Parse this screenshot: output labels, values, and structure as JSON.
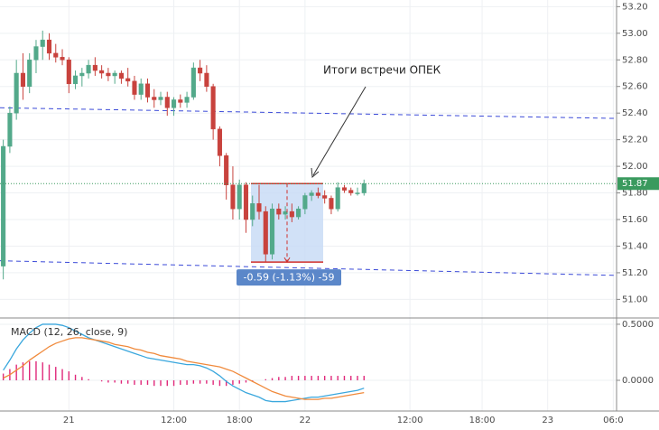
{
  "chart_data": {
    "type": "candlestick",
    "categories": [
      null,
      null,
      null,
      null,
      null,
      null,
      null,
      null,
      null,
      null,
      "21",
      null,
      null,
      null,
      null,
      null,
      null,
      null,
      null,
      null,
      null,
      null,
      null,
      null,
      null,
      null,
      "12:00",
      null,
      null,
      null,
      null,
      null,
      null,
      null,
      null,
      null,
      "18:00",
      null,
      null,
      null,
      null,
      null,
      null,
      null,
      null,
      null,
      "22",
      null,
      null,
      null,
      null,
      null,
      null,
      null,
      null,
      null,
      null,
      null,
      null,
      null,
      null,
      null,
      "12:00",
      null,
      null,
      null,
      null,
      null,
      null,
      null,
      null,
      null,
      null,
      "18:00",
      null,
      null,
      null,
      null,
      null,
      null,
      null,
      null,
      null,
      "23",
      null,
      null,
      null,
      null,
      null,
      null,
      null,
      null,
      null,
      "06:0"
    ],
    "open": [
      51.25,
      52.15,
      52.4,
      52.7,
      52.6,
      52.8,
      52.9,
      52.95,
      52.85,
      52.82,
      52.8,
      52.62,
      52.68,
      52.7,
      52.76,
      52.72,
      52.7,
      52.68,
      52.7,
      52.66,
      52.64,
      52.54,
      52.62,
      52.52,
      52.5,
      52.52,
      52.44,
      52.5,
      52.48,
      52.52,
      52.74,
      52.7,
      52.6,
      52.28,
      52.08,
      51.86,
      51.68,
      51.86,
      51.6,
      51.72,
      51.66,
      51.34,
      51.68,
      51.64,
      51.66,
      51.62,
      51.68,
      51.78,
      51.8,
      51.78,
      51.76,
      51.68,
      51.84,
      51.82,
      51.8,
      51.8,
      null,
      null,
      null,
      null,
      null,
      null,
      null,
      null,
      null,
      null,
      null,
      null,
      null,
      null,
      null,
      null,
      null,
      null,
      null,
      null,
      null,
      null,
      null,
      null,
      null,
      null,
      null,
      null,
      null,
      null,
      null,
      null,
      null,
      null,
      null,
      null,
      null,
      null
    ],
    "high": [
      52.2,
      52.45,
      52.8,
      52.85,
      52.85,
      52.95,
      53.02,
      53.0,
      52.92,
      52.88,
      52.82,
      52.72,
      52.74,
      52.8,
      52.82,
      52.76,
      52.74,
      52.72,
      52.72,
      52.74,
      52.68,
      52.66,
      52.66,
      52.58,
      52.56,
      52.56,
      52.52,
      52.54,
      52.56,
      52.78,
      52.8,
      52.76,
      52.62,
      52.3,
      52.1,
      52.0,
      51.9,
      51.88,
      51.78,
      51.86,
      51.7,
      51.72,
      51.72,
      51.7,
      51.72,
      51.7,
      51.8,
      51.82,
      51.84,
      51.82,
      51.78,
      51.88,
      51.86,
      51.84,
      51.84,
      51.9,
      null,
      null,
      null,
      null,
      null,
      null,
      null,
      null,
      null,
      null,
      null,
      null,
      null,
      null,
      null,
      null,
      null,
      null,
      null,
      null,
      null,
      null,
      null,
      null,
      null,
      null,
      null,
      null,
      null,
      null,
      null,
      null,
      null,
      null,
      null,
      null,
      null,
      null
    ],
    "low": [
      51.15,
      52.1,
      52.35,
      52.5,
      52.55,
      52.7,
      52.8,
      52.8,
      52.78,
      52.76,
      52.55,
      52.58,
      52.6,
      52.66,
      52.68,
      52.66,
      52.64,
      52.62,
      52.62,
      52.6,
      52.5,
      52.5,
      52.48,
      52.44,
      52.46,
      52.38,
      52.38,
      52.44,
      52.44,
      52.5,
      52.64,
      52.56,
      52.2,
      52.0,
      51.75,
      51.6,
      51.6,
      51.5,
      51.55,
      51.6,
      51.28,
      51.3,
      51.6,
      51.6,
      51.58,
      51.6,
      51.64,
      51.74,
      51.76,
      51.72,
      51.64,
      51.66,
      51.8,
      51.78,
      51.78,
      51.78,
      null,
      null,
      null,
      null,
      null,
      null,
      null,
      null,
      null,
      null,
      null,
      null,
      null,
      null,
      null,
      null,
      null,
      null,
      null,
      null,
      null,
      null,
      null,
      null,
      null,
      null,
      null,
      null,
      null,
      null,
      null,
      null,
      null,
      null,
      null,
      null,
      null,
      null
    ],
    "close": [
      52.15,
      52.4,
      52.7,
      52.6,
      52.8,
      52.9,
      52.95,
      52.85,
      52.82,
      52.8,
      52.62,
      52.68,
      52.7,
      52.76,
      52.72,
      52.7,
      52.68,
      52.7,
      52.66,
      52.64,
      52.54,
      52.62,
      52.52,
      52.5,
      52.52,
      52.44,
      52.5,
      52.48,
      52.52,
      52.74,
      52.7,
      52.6,
      52.28,
      52.08,
      51.86,
      51.68,
      51.86,
      51.6,
      51.72,
      51.66,
      51.34,
      51.68,
      51.64,
      51.66,
      51.62,
      51.68,
      51.78,
      51.8,
      51.78,
      51.76,
      51.68,
      51.84,
      51.82,
      51.8,
      51.8,
      51.87,
      null,
      null,
      null,
      null,
      null,
      null,
      null,
      null,
      null,
      null,
      null,
      null,
      null,
      null,
      null,
      null,
      null,
      null,
      null,
      null,
      null,
      null,
      null,
      null,
      null,
      null,
      null,
      null,
      null,
      null,
      null,
      null,
      null,
      null,
      null,
      null,
      null,
      null
    ],
    "up_color": "#53a98a",
    "down_color": "#c8423d",
    "ylim": [
      50.86,
      53.25
    ],
    "yticks": [
      {
        "value": 51.0,
        "label": "51.00"
      },
      {
        "value": 51.2,
        "label": "51.20"
      },
      {
        "value": 51.4,
        "label": "51.40"
      },
      {
        "value": 51.6,
        "label": "51.60"
      },
      {
        "value": 51.8,
        "label": "51.80"
      },
      {
        "value": 52.0,
        "label": "52.00"
      },
      {
        "value": 52.2,
        "label": "52.20"
      },
      {
        "value": 52.4,
        "label": "52.40"
      },
      {
        "value": 52.6,
        "label": "52.60"
      },
      {
        "value": 52.8,
        "label": "52.80"
      },
      {
        "value": 53.0,
        "label": "53.00"
      },
      {
        "value": 53.2,
        "label": "53.20"
      }
    ],
    "grid": true,
    "last_price_color": "#3a9a5e",
    "trendlines": [
      {
        "color": "#3b4ad8",
        "values": [
          52.44,
          52.36
        ]
      },
      {
        "color": "#3b4ad8",
        "values": [
          51.29,
          51.18
        ]
      }
    ],
    "measure": {
      "top": 51.87,
      "bottom": 51.28,
      "label": "-0.59 (-1.13%) -59",
      "color": "#d0312d",
      "fill": "#c6d9f5",
      "label_color": "#5b87c9"
    },
    "annotation": "Итоги встречи ОПЕК",
    "indicator": {
      "title": "MACD (12, 26, close, 9)",
      "ylim": [
        -0.274,
        0.556
      ],
      "yticks": [
        {
          "value": 0.5,
          "label": "0.5000"
        },
        {
          "value": 0,
          "label": "0.0000"
        }
      ],
      "macd": {
        "color": "#3aa7dd",
        "values": [
          0.09,
          0.18,
          0.28,
          0.36,
          0.42,
          0.47,
          0.5,
          0.5,
          0.5,
          0.49,
          0.47,
          0.44,
          0.41,
          0.38,
          0.36,
          0.34,
          0.32,
          0.3,
          0.28,
          0.26,
          0.24,
          0.22,
          0.2,
          0.19,
          0.18,
          0.17,
          0.16,
          0.15,
          0.14,
          0.14,
          0.13,
          0.11,
          0.08,
          0.04,
          -0.01,
          -0.05,
          -0.08,
          -0.11,
          -0.13,
          -0.15,
          -0.18,
          -0.19,
          -0.19,
          -0.19,
          -0.18,
          -0.17,
          -0.16,
          -0.15,
          -0.15,
          -0.14,
          -0.13,
          -0.12,
          -0.11,
          -0.1,
          -0.09,
          -0.07,
          null,
          null,
          null,
          null,
          null,
          null,
          null,
          null,
          null,
          null,
          null,
          null,
          null,
          null,
          null,
          null,
          null,
          null,
          null,
          null,
          null,
          null,
          null,
          null,
          null,
          null,
          null,
          null,
          null,
          null,
          null,
          null,
          null,
          null,
          null,
          null,
          null,
          null
        ]
      },
      "signal": {
        "color": "#f08a3c",
        "values": [
          0.02,
          0.05,
          0.09,
          0.13,
          0.18,
          0.22,
          0.26,
          0.3,
          0.33,
          0.35,
          0.37,
          0.38,
          0.38,
          0.37,
          0.36,
          0.35,
          0.34,
          0.32,
          0.31,
          0.3,
          0.28,
          0.27,
          0.25,
          0.24,
          0.22,
          0.21,
          0.2,
          0.19,
          0.17,
          0.16,
          0.15,
          0.14,
          0.13,
          0.12,
          0.1,
          0.08,
          0.05,
          0.02,
          -0.01,
          -0.04,
          -0.07,
          -0.1,
          -0.12,
          -0.14,
          -0.15,
          -0.16,
          -0.17,
          -0.17,
          -0.17,
          -0.16,
          -0.16,
          -0.15,
          -0.14,
          -0.13,
          -0.12,
          -0.11,
          null,
          null,
          null,
          null,
          null,
          null,
          null,
          null,
          null,
          null,
          null,
          null,
          null,
          null,
          null,
          null,
          null,
          null,
          null,
          null,
          null,
          null,
          null,
          null,
          null,
          null,
          null,
          null,
          null,
          null,
          null,
          null,
          null,
          null,
          null,
          null,
          null,
          null
        ]
      },
      "histogram": {
        "color": "#e0287a",
        "values": [
          0.06,
          0.1,
          0.14,
          0.16,
          0.17,
          0.17,
          0.16,
          0.14,
          0.12,
          0.1,
          0.08,
          0.05,
          0.03,
          0.01,
          0,
          -0.01,
          -0.02,
          -0.02,
          -0.03,
          -0.03,
          -0.04,
          -0.04,
          -0.04,
          -0.05,
          -0.05,
          -0.05,
          -0.05,
          -0.04,
          -0.04,
          -0.03,
          -0.03,
          -0.03,
          -0.04,
          -0.05,
          -0.05,
          -0.04,
          -0.03,
          -0.02,
          -0.01,
          0,
          0.01,
          0.02,
          0.03,
          0.03,
          0.04,
          0.04,
          0.04,
          0.04,
          0.04,
          0.04,
          0.04,
          0.04,
          0.04,
          0.04,
          0.04,
          0.04,
          null,
          null,
          null,
          null,
          null,
          null,
          null,
          null,
          null,
          null,
          null,
          null,
          null,
          null,
          null,
          null,
          null,
          null,
          null,
          null,
          null,
          null,
          null,
          null,
          null,
          null,
          null,
          null,
          null,
          null,
          null,
          null,
          null,
          null,
          null,
          null,
          null,
          null
        ]
      }
    }
  }
}
